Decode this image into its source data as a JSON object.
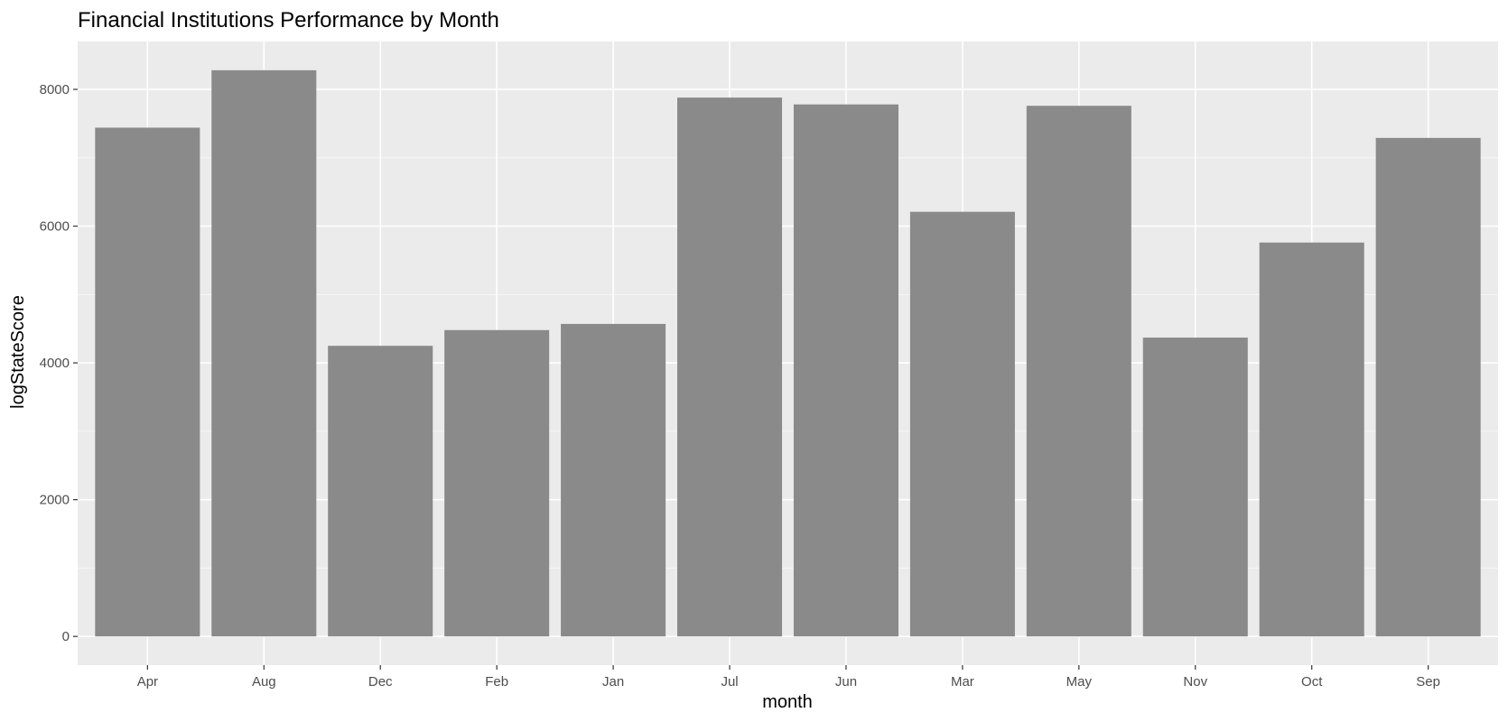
{
  "chart_data": {
    "type": "bar",
    "title": "Financial Institutions Performance by Month",
    "xlabel": "month",
    "ylabel": "logStateScore",
    "categories": [
      "Apr",
      "Aug",
      "Dec",
      "Feb",
      "Jan",
      "Jul",
      "Jun",
      "Mar",
      "May",
      "Nov",
      "Oct",
      "Sep"
    ],
    "values": [
      7440,
      8280,
      4250,
      4480,
      4570,
      7880,
      7780,
      6210,
      7760,
      4370,
      5760,
      7290
    ],
    "yticks": [
      0,
      2000,
      4000,
      6000,
      8000
    ],
    "ylim": [
      -420,
      8700
    ],
    "grid": true,
    "legend": "none",
    "colors": {
      "panel_background": "#ebebeb",
      "grid_major": "#ffffff",
      "bar_fill": "#8a8a8a"
    }
  }
}
